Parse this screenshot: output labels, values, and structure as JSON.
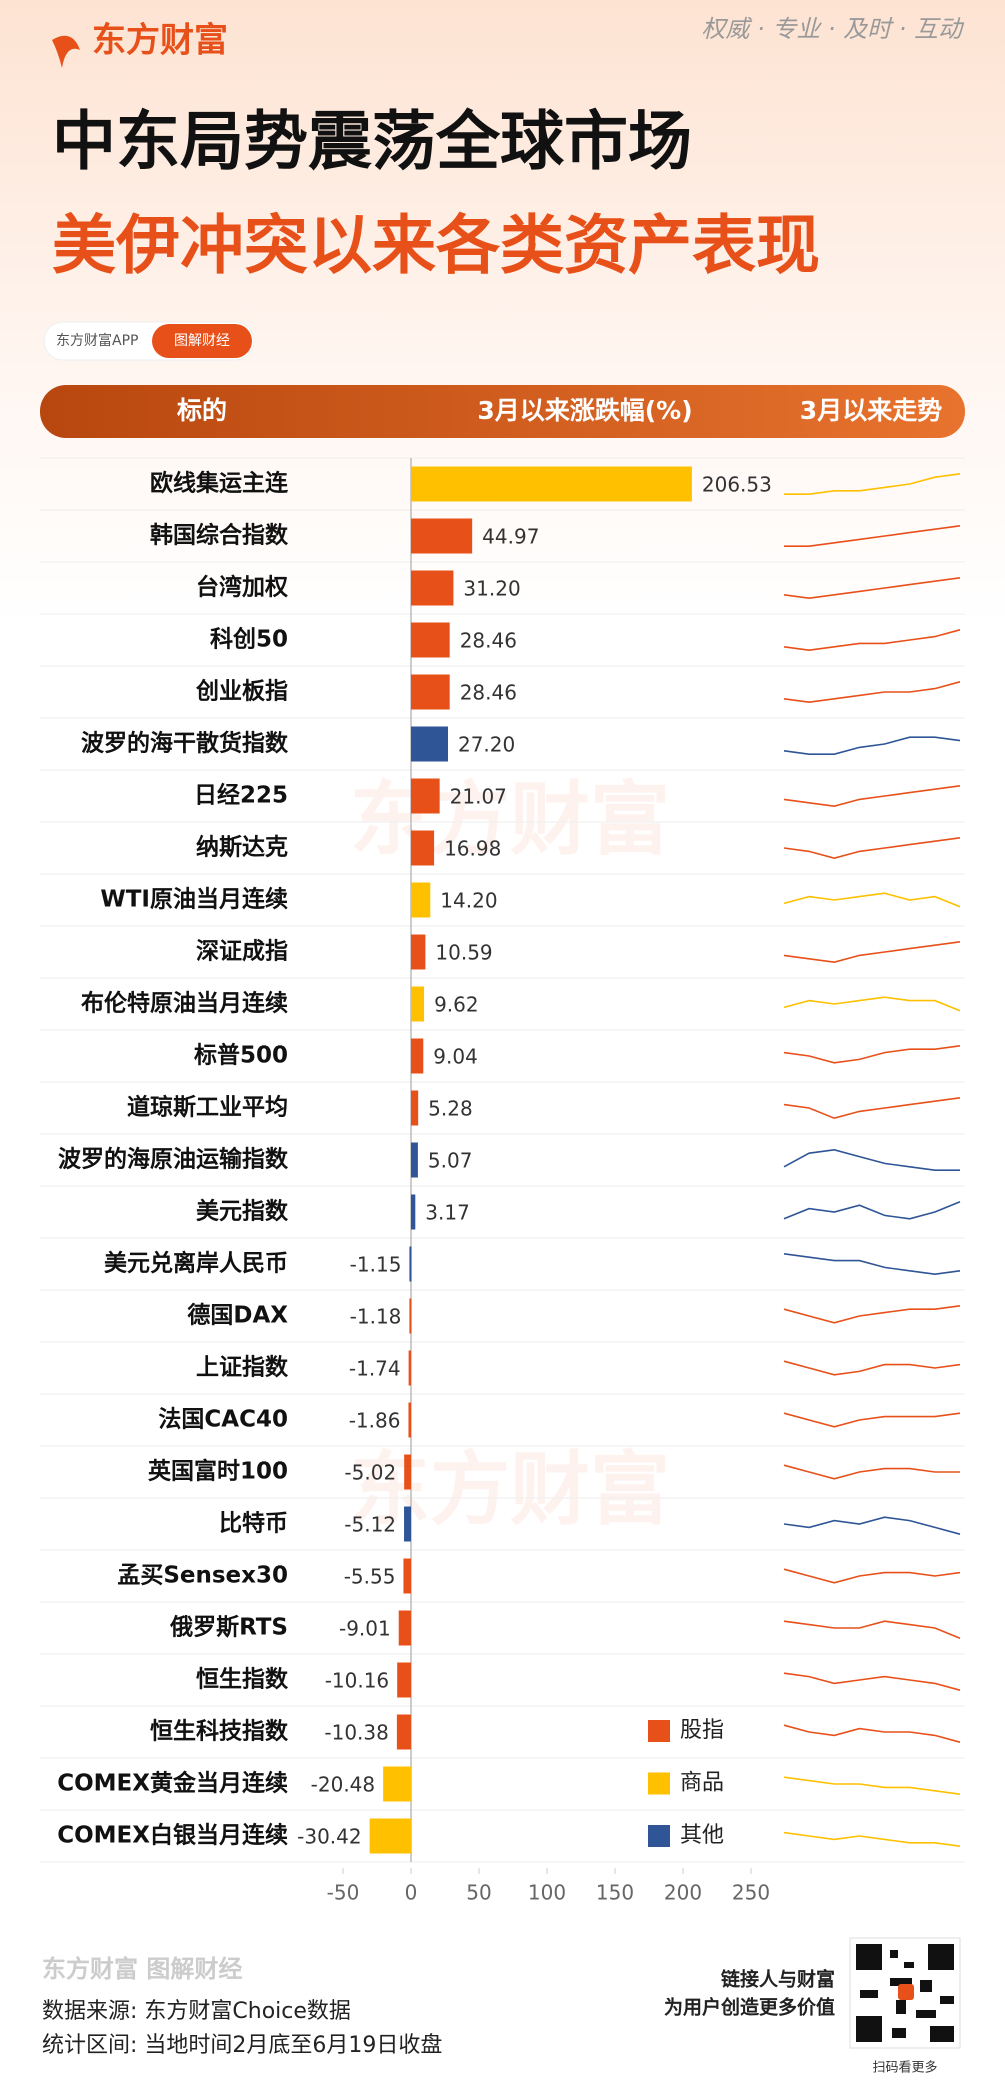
{
  "header": {
    "logo": "东方财富",
    "slogan": "权威 · 专业 · 及时 · 互动",
    "title": "中东局势震荡全球市场",
    "subtitle": "美伊冲突以来各类资产表现",
    "tag_app": "东方财富APP",
    "tag_topic": "图解财经"
  },
  "chart_data": {
    "type": "bar",
    "orientation": "horizontal",
    "column_headers": [
      "标的",
      "3月以来涨跌幅(%)",
      "3月以来走势"
    ],
    "categories": [
      "欧线集运主连",
      "韩国综合指数",
      "台湾加权",
      "科创50",
      "创业板指",
      "波罗的海干散货指数",
      "日经225",
      "纳斯达克",
      "WTI原油当月连续",
      "深证成指",
      "布伦特原油当月连续",
      "标普500",
      "道琼斯工业平均",
      "波罗的海原油运输指数",
      "美元指数",
      "美元兑离岸人民币",
      "德国DAX",
      "上证指数",
      "法国CAC40",
      "英国富时100",
      "比特币",
      "孟买Sensex30",
      "俄罗斯RTS",
      "恒生指数",
      "恒生科技指数",
      "COMEX黄金当月连续",
      "COMEX白银当月连续"
    ],
    "values": [
      206.53,
      44.97,
      31.2,
      28.46,
      28.46,
      27.2,
      21.07,
      16.98,
      14.2,
      10.59,
      9.62,
      9.04,
      5.28,
      5.07,
      3.17,
      -1.15,
      -1.18,
      -1.74,
      -1.86,
      -5.02,
      -5.12,
      -5.55,
      -9.01,
      -10.16,
      -10.38,
      -20.48,
      -30.42
    ],
    "value_labels": [
      "206.53",
      "44.97",
      "31.20",
      "28.46",
      "28.46",
      "27.20",
      "21.07",
      "16.98",
      "14.20",
      "10.59",
      "9.62",
      "9.04",
      "5.28",
      "5.07",
      "3.17",
      "-1.15",
      "-1.18",
      "-1.74",
      "-1.86",
      "-5.02",
      "-5.12",
      "-5.55",
      "-9.01",
      "-10.16",
      "-10.38",
      "-20.48",
      "-30.42"
    ],
    "category_groups": [
      1,
      0,
      0,
      0,
      0,
      2,
      0,
      0,
      1,
      0,
      1,
      0,
      0,
      2,
      2,
      2,
      0,
      0,
      0,
      0,
      2,
      0,
      0,
      0,
      0,
      1,
      1
    ],
    "legend": [
      {
        "name": "股指",
        "color": "#E8501A"
      },
      {
        "name": "商品",
        "color": "#FFC000"
      },
      {
        "name": "其他",
        "color": "#2F5597"
      }
    ],
    "xlim": [
      -50,
      250
    ],
    "xticks": [
      -50,
      0,
      50,
      100,
      150,
      200,
      250
    ],
    "trend_range": [
      0,
      10
    ],
    "trends": [
      [
        2,
        2,
        3,
        3,
        4,
        5,
        7,
        8
      ],
      [
        2,
        2,
        3,
        4,
        5,
        6,
        7,
        8
      ],
      [
        3,
        2,
        3,
        4,
        5,
        6,
        7,
        8
      ],
      [
        3,
        2,
        3,
        4,
        4,
        5,
        6,
        8
      ],
      [
        3,
        2,
        3,
        4,
        5,
        5,
        6,
        8
      ],
      [
        3,
        2,
        2,
        4,
        5,
        7,
        7,
        6
      ],
      [
        4,
        3,
        2,
        4,
        5,
        6,
        7,
        8
      ],
      [
        5,
        4,
        2,
        4,
        5,
        6,
        7,
        8
      ],
      [
        4,
        6,
        5,
        6,
        7,
        5,
        6,
        3
      ],
      [
        4,
        3,
        2,
        4,
        5,
        6,
        7,
        8
      ],
      [
        4,
        6,
        5,
        6,
        7,
        6,
        6,
        3
      ],
      [
        6,
        5,
        3,
        4,
        6,
        7,
        7,
        8
      ],
      [
        6,
        5,
        2,
        4,
        5,
        6,
        7,
        8
      ],
      [
        3,
        7,
        8,
        6,
        4,
        3,
        2,
        2
      ],
      [
        3,
        6,
        5,
        7,
        4,
        3,
        5,
        8
      ],
      [
        8,
        7,
        6,
        6,
        4,
        3,
        2,
        3
      ],
      [
        7,
        5,
        3,
        5,
        6,
        7,
        7,
        8
      ],
      [
        7,
        5,
        3,
        4,
        6,
        6,
        5,
        6
      ],
      [
        7,
        5,
        3,
        5,
        6,
        6,
        6,
        7
      ],
      [
        7,
        5,
        3,
        5,
        6,
        6,
        5,
        5
      ],
      [
        5,
        4,
        6,
        5,
        7,
        6,
        4,
        2
      ],
      [
        7,
        5,
        3,
        5,
        6,
        6,
        5,
        6
      ],
      [
        7,
        6,
        5,
        5,
        7,
        6,
        5,
        2
      ],
      [
        7,
        6,
        4,
        5,
        6,
        5,
        4,
        2
      ],
      [
        7,
        5,
        4,
        6,
        5,
        5,
        4,
        2
      ],
      [
        7,
        6,
        5,
        5,
        4,
        4,
        3,
        2
      ],
      [
        6,
        5,
        4,
        5,
        4,
        3,
        3,
        2
      ]
    ]
  },
  "watermark": "东方财富",
  "footer": {
    "logo": "东方财富 图解财经",
    "source": "数据来源: 东方财富Choice数据",
    "period": "统计区间: 当地时间2月底至6月19日收盘",
    "slogan1": "链接人与财富",
    "slogan2": "为用户创造更多价值",
    "qr_caption": "扫码看更多"
  }
}
